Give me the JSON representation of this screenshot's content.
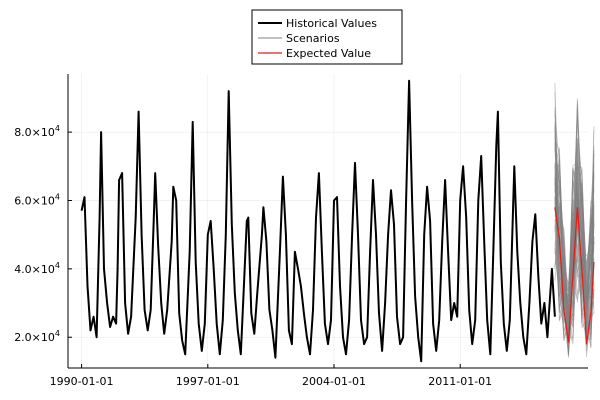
{
  "chart_data": {
    "type": "line",
    "title": "",
    "xlabel": "",
    "ylabel": "",
    "x_range": [
      "1989-04-01",
      "2018-02-01"
    ],
    "ylim": [
      11000,
      97000
    ],
    "grid": true,
    "legend_position": "top-center",
    "x_ticks": [
      {
        "value": "1990-01-01",
        "label": "1990-01-01"
      },
      {
        "value": "1997-01-01",
        "label": "1997-01-01"
      },
      {
        "value": "2004-01-01",
        "label": "2004-01-01"
      },
      {
        "value": "2011-01-01",
        "label": "2011-01-01"
      }
    ],
    "y_ticks": [
      {
        "value": 20000,
        "mantissa": "2.0×10",
        "exp": "4"
      },
      {
        "value": 40000,
        "mantissa": "4.0×10",
        "exp": "4"
      },
      {
        "value": 60000,
        "mantissa": "6.0×10",
        "exp": "4"
      },
      {
        "value": 80000,
        "mantissa": "8.0×10",
        "exp": "4"
      }
    ],
    "legend": [
      {
        "label": "Historical Values",
        "color": "#000000",
        "width": 2
      },
      {
        "label": "Scenarios",
        "color": "#808080",
        "width": 1
      },
      {
        "label": "Expected Value",
        "color": "#e0201b",
        "width": 1.2
      }
    ],
    "historical": {
      "name": "Historical Values",
      "color": "#000000",
      "points": [
        [
          "1990-01-01",
          57000
        ],
        [
          "1990-03-01",
          61000
        ],
        [
          "1990-05-01",
          35000
        ],
        [
          "1990-07-01",
          22000
        ],
        [
          "1990-09-01",
          26000
        ],
        [
          "1990-11-01",
          20000
        ],
        [
          "1991-01-01",
          55000
        ],
        [
          "1991-02-01",
          80000
        ],
        [
          "1991-04-01",
          40000
        ],
        [
          "1991-06-01",
          30000
        ],
        [
          "1991-08-01",
          23000
        ],
        [
          "1991-10-01",
          26000
        ],
        [
          "1991-12-01",
          24000
        ],
        [
          "1992-01-01",
          40000
        ],
        [
          "1992-02-01",
          66000
        ],
        [
          "1992-04-01",
          68000
        ],
        [
          "1992-06-01",
          30000
        ],
        [
          "1992-08-01",
          21000
        ],
        [
          "1992-10-01",
          26000
        ],
        [
          "1993-01-01",
          55000
        ],
        [
          "1993-03-01",
          86000
        ],
        [
          "1993-05-01",
          50000
        ],
        [
          "1993-07-01",
          28000
        ],
        [
          "1993-09-01",
          22000
        ],
        [
          "1993-11-01",
          28000
        ],
        [
          "1994-01-01",
          54000
        ],
        [
          "1994-02-01",
          68000
        ],
        [
          "1994-04-01",
          47000
        ],
        [
          "1994-06-01",
          30000
        ],
        [
          "1994-08-01",
          21000
        ],
        [
          "1994-10-01",
          28000
        ],
        [
          "1995-01-01",
          48000
        ],
        [
          "1995-02-01",
          64000
        ],
        [
          "1995-04-01",
          60000
        ],
        [
          "1995-06-01",
          27000
        ],
        [
          "1995-08-01",
          19000
        ],
        [
          "1995-10-01",
          15000
        ],
        [
          "1996-01-01",
          45000
        ],
        [
          "1996-03-01",
          83000
        ],
        [
          "1996-05-01",
          42000
        ],
        [
          "1996-07-01",
          24000
        ],
        [
          "1996-09-01",
          16000
        ],
        [
          "1996-11-01",
          24000
        ],
        [
          "1997-01-01",
          50000
        ],
        [
          "1997-03-01",
          54000
        ],
        [
          "1997-05-01",
          40000
        ],
        [
          "1997-07-01",
          24000
        ],
        [
          "1997-09-01",
          15000
        ],
        [
          "1997-11-01",
          25000
        ],
        [
          "1998-01-01",
          50000
        ],
        [
          "1998-03-01",
          92000
        ],
        [
          "1998-05-01",
          53000
        ],
        [
          "1998-07-01",
          33000
        ],
        [
          "1998-09-01",
          22000
        ],
        [
          "1998-11-01",
          15000
        ],
        [
          "1999-01-01",
          35000
        ],
        [
          "1999-03-01",
          54000
        ],
        [
          "1999-04-01",
          55000
        ],
        [
          "1999-06-01",
          27000
        ],
        [
          "1999-08-01",
          21000
        ],
        [
          "1999-10-01",
          33000
        ],
        [
          "2000-01-01",
          50000
        ],
        [
          "2000-02-01",
          58000
        ],
        [
          "2000-04-01",
          48000
        ],
        [
          "2000-06-01",
          28000
        ],
        [
          "2000-08-01",
          22000
        ],
        [
          "2000-10-01",
          14000
        ],
        [
          "2001-01-01",
          45000
        ],
        [
          "2001-03-01",
          67000
        ],
        [
          "2001-05-01",
          50000
        ],
        [
          "2001-07-01",
          22000
        ],
        [
          "2001-09-01",
          18000
        ],
        [
          "2001-11-01",
          45000
        ],
        [
          "2002-01-01",
          40000
        ],
        [
          "2002-03-01",
          35000
        ],
        [
          "2002-05-01",
          27000
        ],
        [
          "2002-07-01",
          20000
        ],
        [
          "2002-09-01",
          15000
        ],
        [
          "2002-11-01",
          28000
        ],
        [
          "2003-01-01",
          55000
        ],
        [
          "2003-03-01",
          68000
        ],
        [
          "2003-05-01",
          45000
        ],
        [
          "2003-07-01",
          24000
        ],
        [
          "2003-09-01",
          18000
        ],
        [
          "2003-11-01",
          25000
        ],
        [
          "2004-01-01",
          60000
        ],
        [
          "2004-03-01",
          61000
        ],
        [
          "2004-05-01",
          35000
        ],
        [
          "2004-07-01",
          20000
        ],
        [
          "2004-09-01",
          15000
        ],
        [
          "2004-11-01",
          25000
        ],
        [
          "2005-01-01",
          50000
        ],
        [
          "2005-03-01",
          71000
        ],
        [
          "2005-05-01",
          50000
        ],
        [
          "2005-07-01",
          25000
        ],
        [
          "2005-09-01",
          18000
        ],
        [
          "2005-11-01",
          20000
        ],
        [
          "2006-01-01",
          45000
        ],
        [
          "2006-03-01",
          66000
        ],
        [
          "2006-05-01",
          50000
        ],
        [
          "2006-07-01",
          27000
        ],
        [
          "2006-09-01",
          16000
        ],
        [
          "2006-11-01",
          30000
        ],
        [
          "2007-01-01",
          50000
        ],
        [
          "2007-03-01",
          63000
        ],
        [
          "2007-05-01",
          53000
        ],
        [
          "2007-07-01",
          26000
        ],
        [
          "2007-09-01",
          18000
        ],
        [
          "2007-11-01",
          20000
        ],
        [
          "2008-01-01",
          60000
        ],
        [
          "2008-03-01",
          95000
        ],
        [
          "2008-05-01",
          60000
        ],
        [
          "2008-07-01",
          32000
        ],
        [
          "2008-09-01",
          20000
        ],
        [
          "2008-11-01",
          13000
        ],
        [
          "2009-01-01",
          50000
        ],
        [
          "2009-03-01",
          64000
        ],
        [
          "2009-05-01",
          54000
        ],
        [
          "2009-07-01",
          24000
        ],
        [
          "2009-09-01",
          16000
        ],
        [
          "2009-11-01",
          25000
        ],
        [
          "2010-01-01",
          48000
        ],
        [
          "2010-03-01",
          66000
        ],
        [
          "2010-05-01",
          45000
        ],
        [
          "2010-07-01",
          25000
        ],
        [
          "2010-09-01",
          30000
        ],
        [
          "2010-11-01",
          26000
        ],
        [
          "2011-01-01",
          60000
        ],
        [
          "2011-03-01",
          70000
        ],
        [
          "2011-05-01",
          55000
        ],
        [
          "2011-07-01",
          28000
        ],
        [
          "2011-09-01",
          18000
        ],
        [
          "2011-11-01",
          25000
        ],
        [
          "2012-01-01",
          60000
        ],
        [
          "2012-03-01",
          73000
        ],
        [
          "2012-05-01",
          48000
        ],
        [
          "2012-07-01",
          25000
        ],
        [
          "2012-09-01",
          15000
        ],
        [
          "2012-11-01",
          45000
        ],
        [
          "2013-01-01",
          76000
        ],
        [
          "2013-02-01",
          86000
        ],
        [
          "2013-04-01",
          42000
        ],
        [
          "2013-06-01",
          24000
        ],
        [
          "2013-08-01",
          16000
        ],
        [
          "2013-10-01",
          25000
        ],
        [
          "2014-01-01",
          70000
        ],
        [
          "2014-03-01",
          45000
        ],
        [
          "2014-05-01",
          30000
        ],
        [
          "2014-07-01",
          20000
        ],
        [
          "2014-09-01",
          15000
        ],
        [
          "2014-11-01",
          30000
        ],
        [
          "2015-01-01",
          48000
        ],
        [
          "2015-03-01",
          56000
        ],
        [
          "2015-05-01",
          38000
        ],
        [
          "2015-07-01",
          24000
        ],
        [
          "2015-09-01",
          30000
        ],
        [
          "2015-11-01",
          20000
        ],
        [
          "2016-02-01",
          40000
        ],
        [
          "2016-04-01",
          26000
        ]
      ]
    },
    "expected": {
      "name": "Expected Value",
      "color": "#e0201b",
      "points": [
        [
          "2016-04-01",
          58000
        ],
        [
          "2016-07-01",
          49000
        ],
        [
          "2016-10-01",
          28000
        ],
        [
          "2017-01-01",
          18500
        ],
        [
          "2017-04-01",
          38000
        ],
        [
          "2017-07-01",
          58000
        ],
        [
          "2017-10-01",
          40000
        ],
        [
          "2018-01-01",
          18000
        ],
        [
          "2018-04-01",
          27000
        ],
        [
          "2018-06-01",
          42000
        ]
      ]
    },
    "scenarios": {
      "name": "Scenarios",
      "color": "#808080",
      "upper": [
        [
          "2016-04-01",
          95000
        ],
        [
          "2016-07-01",
          76000
        ],
        [
          "2016-10-01",
          52000
        ],
        [
          "2017-01-01",
          36000
        ],
        [
          "2017-04-01",
          72000
        ],
        [
          "2017-07-01",
          92000
        ],
        [
          "2017-10-01",
          70000
        ],
        [
          "2018-01-01",
          45000
        ],
        [
          "2018-04-01",
          60000
        ],
        [
          "2018-06-01",
          85000
        ]
      ],
      "lower": [
        [
          "2016-04-01",
          35000
        ],
        [
          "2016-07-01",
          24000
        ],
        [
          "2016-10-01",
          18000
        ],
        [
          "2017-01-01",
          13500
        ],
        [
          "2017-04-01",
          18000
        ],
        [
          "2017-07-01",
          30000
        ],
        [
          "2017-10-01",
          22000
        ],
        [
          "2018-01-01",
          13500
        ],
        [
          "2018-04-01",
          16000
        ],
        [
          "2018-06-01",
          22000
        ]
      ]
    }
  }
}
